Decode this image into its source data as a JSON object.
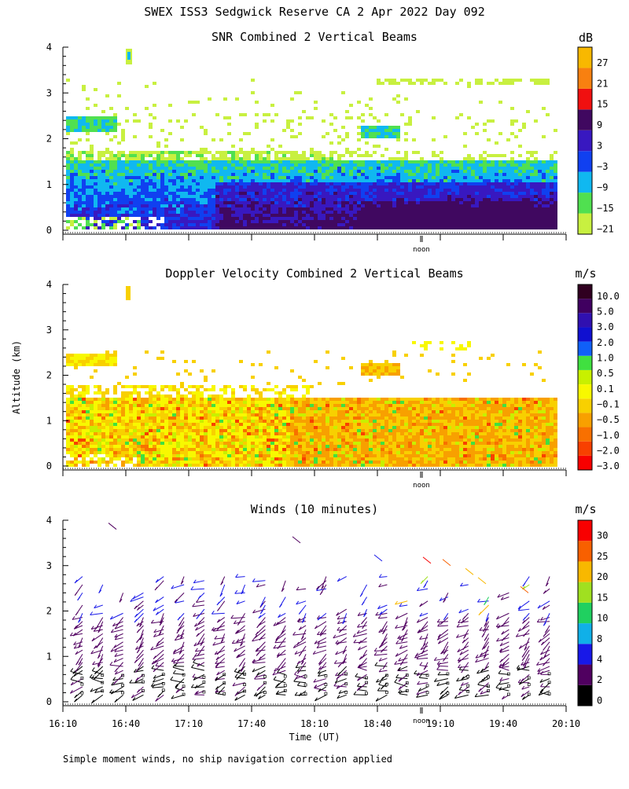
{
  "main_title": "SWEX ISS3 Sedgwick Reserve CA   2 Apr 2022 Day 092",
  "ylabel": "Altitude (km)",
  "xlabel": "Time (UT)",
  "noon_label": "noon",
  "footnote": "Simple moment winds, no ship navigation correction applied",
  "y_ticks": [
    "0",
    "1",
    "2",
    "3",
    "4"
  ],
  "x_ticks": [
    "16:10",
    "16:40",
    "17:10",
    "17:40",
    "18:10",
    "18:40",
    "19:10",
    "19:40",
    "20:10"
  ],
  "colors": {
    "snr": [
      "#c8f040",
      "#50e050",
      "#10b8f0",
      "#1040f0",
      "#3818c0",
      "#400860",
      "#f01010",
      "#f88010",
      "#f8b800"
    ],
    "doppler": [
      "#f80000",
      "#f84000",
      "#f87000",
      "#f8a000",
      "#f8d000",
      "#f8f800",
      "#c8f000",
      "#40e040",
      "#1060f8",
      "#1010d0",
      "#3010b0",
      "#400060",
      "#300020"
    ],
    "winds": [
      "#000000",
      "#500060",
      "#1818e8",
      "#10b0e8",
      "#20d060",
      "#a0e020",
      "#f8b800",
      "#f86000",
      "#f80000"
    ]
  },
  "chart_data": [
    {
      "type": "heatmap",
      "title": "SNR Combined 2 Vertical Beams",
      "units": "dB",
      "colorbar_labels": [
        "27",
        "21",
        "15",
        "9",
        "3",
        "−3",
        "−9",
        "−15",
        "−21"
      ],
      "xlim": [
        "16:10",
        "20:10"
      ],
      "ylim": [
        0,
        4
      ],
      "layers": [
        {
          "x0": 16.2,
          "x1": 20.0,
          "y0": 0.15,
          "y1": 1.6,
          "level": 0.5
        },
        {
          "x0": 16.2,
          "x1": 20.0,
          "y0": 0.2,
          "y1": 1.4,
          "level": 0.75
        },
        {
          "x0": 16.4,
          "x1": 20.0,
          "y0": 0.3,
          "y1": 1.1,
          "level": 0.9
        }
      ]
    },
    {
      "type": "heatmap",
      "title": "Doppler Velocity Combined 2 Vertical Beams",
      "units": "m/s",
      "colorbar_labels": [
        "10.0",
        "5.0",
        "3.0",
        "2.0",
        "1.0",
        "0.5",
        "0.1",
        "−0.1",
        "−0.5",
        "−1.0",
        "−2.0",
        "−3.0"
      ],
      "xlim": [
        "16:10",
        "20:10"
      ],
      "ylim": [
        0,
        4
      ]
    },
    {
      "type": "scatter",
      "title": "Winds (10 minutes)",
      "units": "m/s",
      "colorbar_labels": [
        "30",
        "25",
        "20",
        "15",
        "10",
        "8",
        "4",
        "2",
        "0"
      ],
      "xlim": [
        "16:10",
        "20:10"
      ],
      "ylim": [
        0,
        4
      ],
      "profile_times": [
        "16:10",
        "16:20",
        "16:30",
        "16:40",
        "16:50",
        "17:00",
        "17:10",
        "17:20",
        "17:30",
        "17:40",
        "17:50",
        "18:00",
        "18:10",
        "18:20",
        "18:30",
        "18:40",
        "18:50",
        "19:00",
        "19:10",
        "19:20",
        "19:30",
        "19:40",
        "19:50",
        "20:00"
      ]
    }
  ]
}
